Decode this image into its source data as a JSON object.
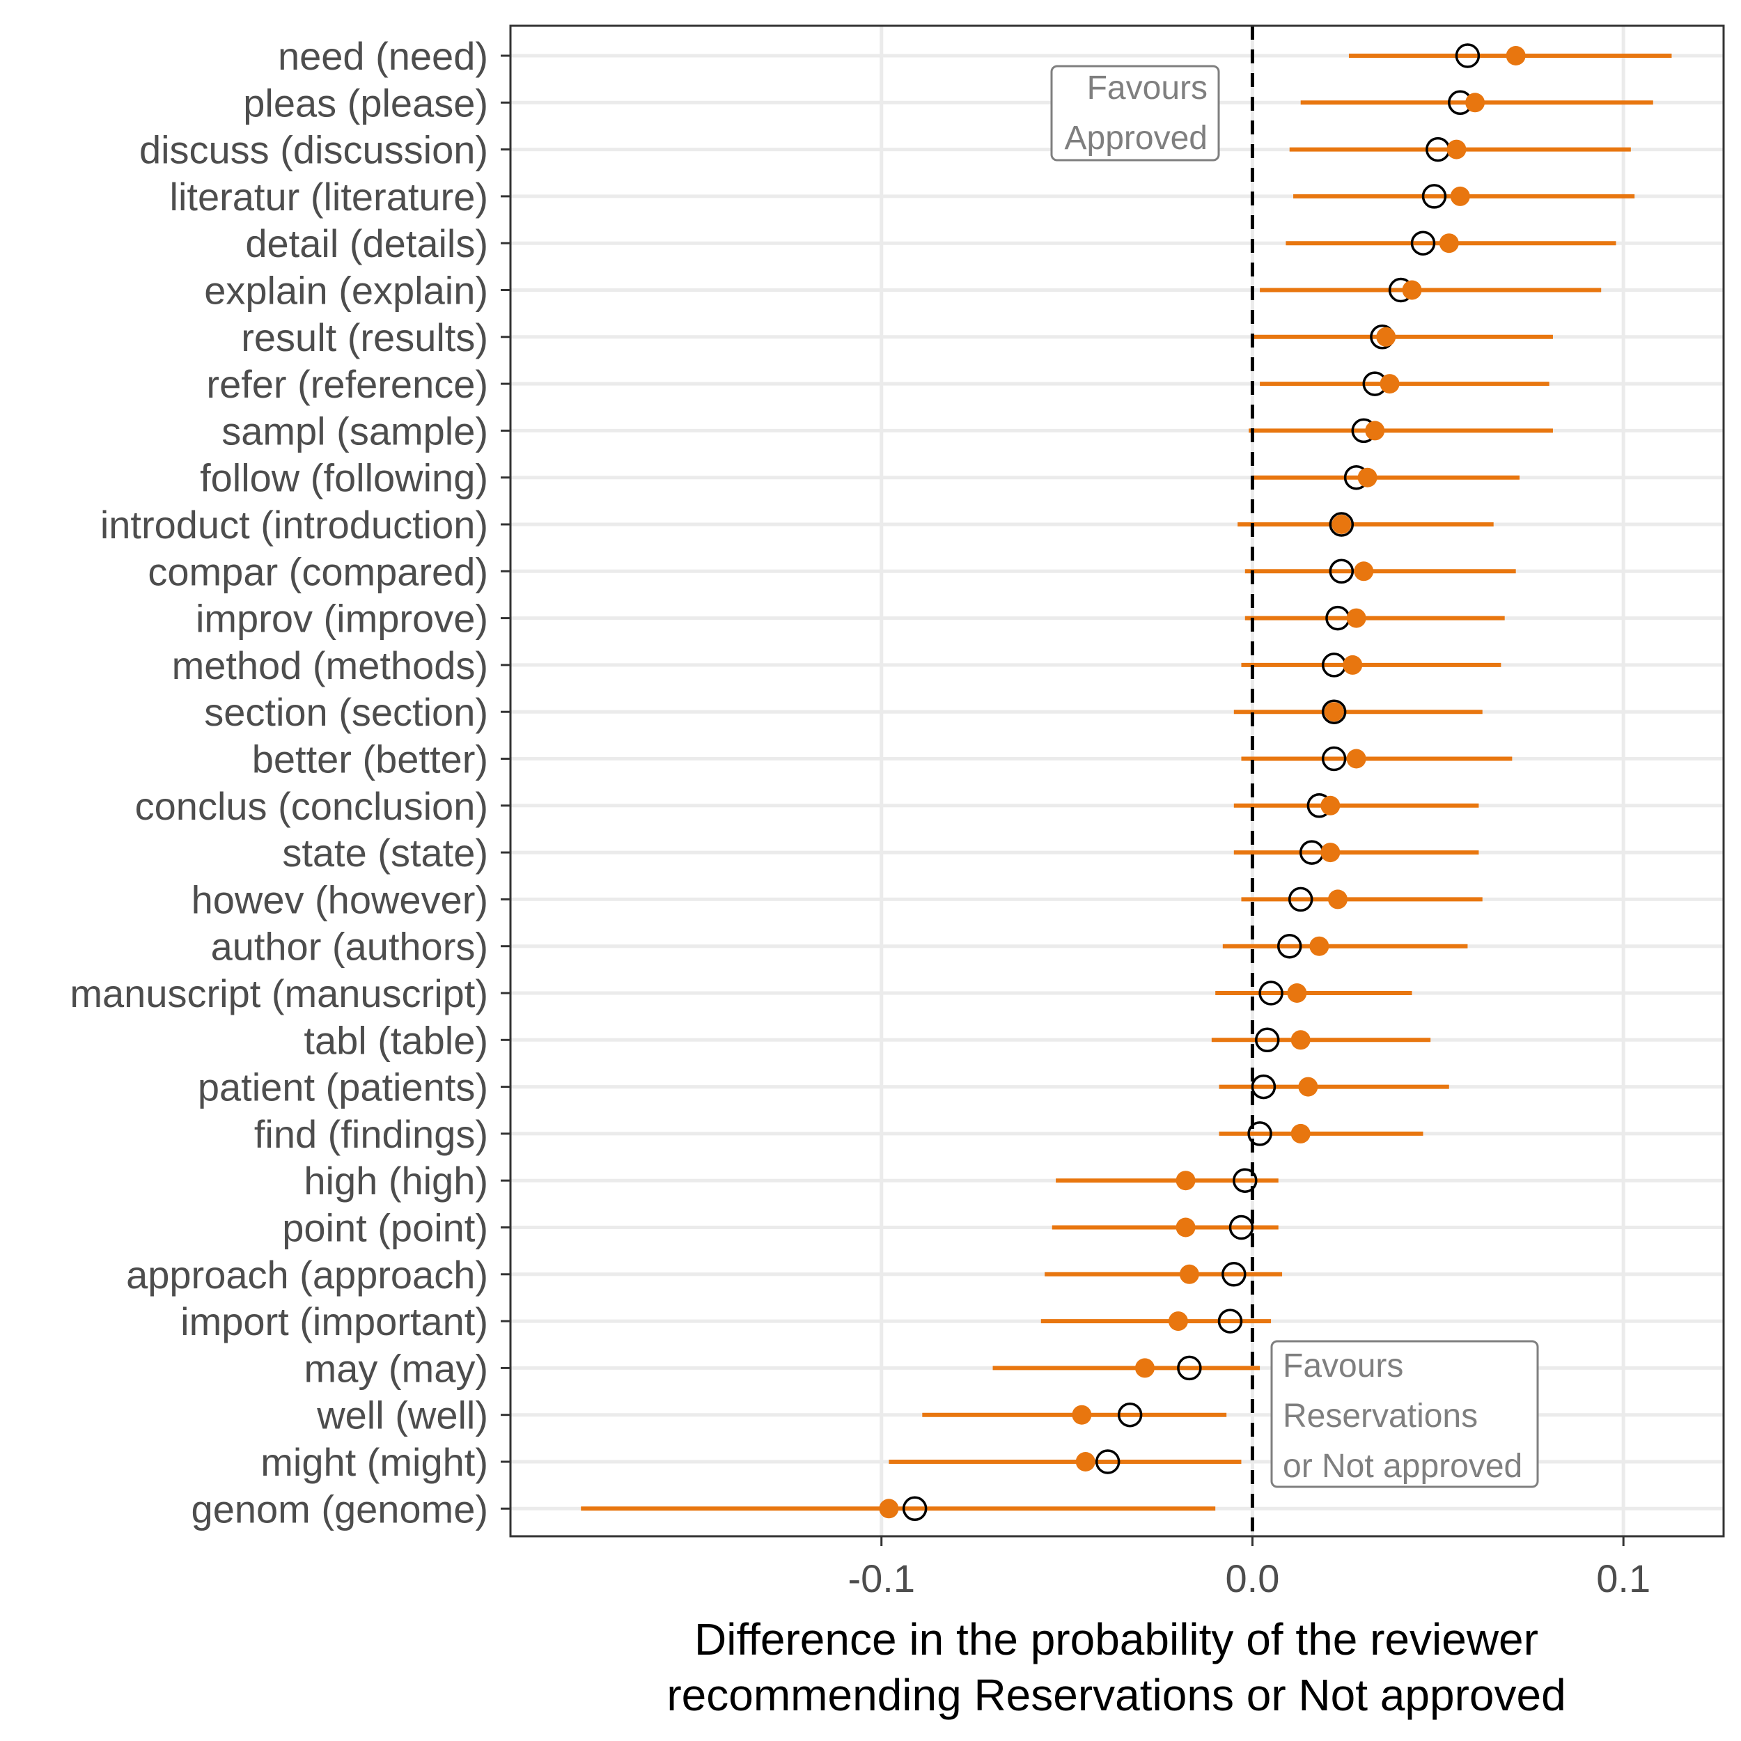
{
  "chart_data": {
    "type": "scatter",
    "subtype": "dot-and-whisker",
    "xlabel_lines": [
      "Difference in the probability of the reviewer",
      "recommending Reservations or Not approved"
    ],
    "ylabel": "",
    "xlim": [
      -0.2,
      0.127
    ],
    "xticks": [
      -0.1,
      0.0,
      0.1
    ],
    "xtick_labels": [
      "-0.1",
      "0.0",
      "0.1"
    ],
    "grid": true,
    "reference_line": 0,
    "colors": {
      "filled": "#e8760f",
      "interval": "#e8760f",
      "open": "#000000",
      "dashed": "#000000"
    },
    "annotations": [
      {
        "lines": [
          "Favours",
          "Approved"
        ],
        "align": "right"
      },
      {
        "lines": [
          "Favours",
          "Reservations",
          "or Not approved"
        ],
        "align": "left"
      }
    ],
    "categories": [
      "need (need)",
      "pleas (please)",
      "discuss (discussion)",
      "literatur (literature)",
      "detail (details)",
      "explain (explain)",
      "result (results)",
      "refer (reference)",
      "sampl (sample)",
      "follow (following)",
      "introduct (introduction)",
      "compar (compared)",
      "improv (improve)",
      "method (methods)",
      "section (section)",
      "better (better)",
      "conclus (conclusion)",
      "state (state)",
      "howev (however)",
      "author (authors)",
      "manuscript (manuscript)",
      "tabl (table)",
      "patient (patients)",
      "find (findings)",
      "high (high)",
      "point (point)",
      "approach (approach)",
      "import (important)",
      "may (may)",
      "well (well)",
      "might (might)",
      "genom (genome)"
    ],
    "series": [
      {
        "marker": "filled",
        "values": [
          0.071,
          0.06,
          0.055,
          0.056,
          0.053,
          0.043,
          0.036,
          0.037,
          0.033,
          0.031,
          0.024,
          0.03,
          0.028,
          0.027,
          0.022,
          0.028,
          0.021,
          0.021,
          0.023,
          0.018,
          0.012,
          0.013,
          0.015,
          0.013,
          -0.018,
          -0.018,
          -0.017,
          -0.02,
          -0.029,
          -0.046,
          -0.045,
          -0.098
        ],
        "lower": [
          0.026,
          0.013,
          0.01,
          0.011,
          0.009,
          0.002,
          0.0,
          0.002,
          -0.001,
          0.0,
          -0.004,
          -0.002,
          -0.002,
          -0.003,
          -0.005,
          -0.003,
          -0.005,
          -0.005,
          -0.003,
          -0.008,
          -0.01,
          -0.011,
          -0.009,
          -0.009,
          -0.053,
          -0.054,
          -0.056,
          -0.057,
          -0.07,
          -0.089,
          -0.098,
          -0.181
        ],
        "upper": [
          0.113,
          0.108,
          0.102,
          0.103,
          0.098,
          0.094,
          0.081,
          0.08,
          0.081,
          0.072,
          0.065,
          0.071,
          0.068,
          0.067,
          0.062,
          0.07,
          0.061,
          0.061,
          0.062,
          0.058,
          0.043,
          0.048,
          0.053,
          0.046,
          0.007,
          0.007,
          0.008,
          0.005,
          0.002,
          -0.007,
          -0.003,
          -0.01
        ]
      },
      {
        "marker": "open",
        "values": [
          0.058,
          0.056,
          0.05,
          0.049,
          0.046,
          0.04,
          0.035,
          0.033,
          0.03,
          0.028,
          0.024,
          0.024,
          0.023,
          0.022,
          0.022,
          0.022,
          0.018,
          0.016,
          0.013,
          0.01,
          0.005,
          0.004,
          0.003,
          0.002,
          -0.002,
          -0.003,
          -0.005,
          -0.006,
          -0.017,
          -0.033,
          -0.039,
          -0.091
        ]
      }
    ]
  }
}
